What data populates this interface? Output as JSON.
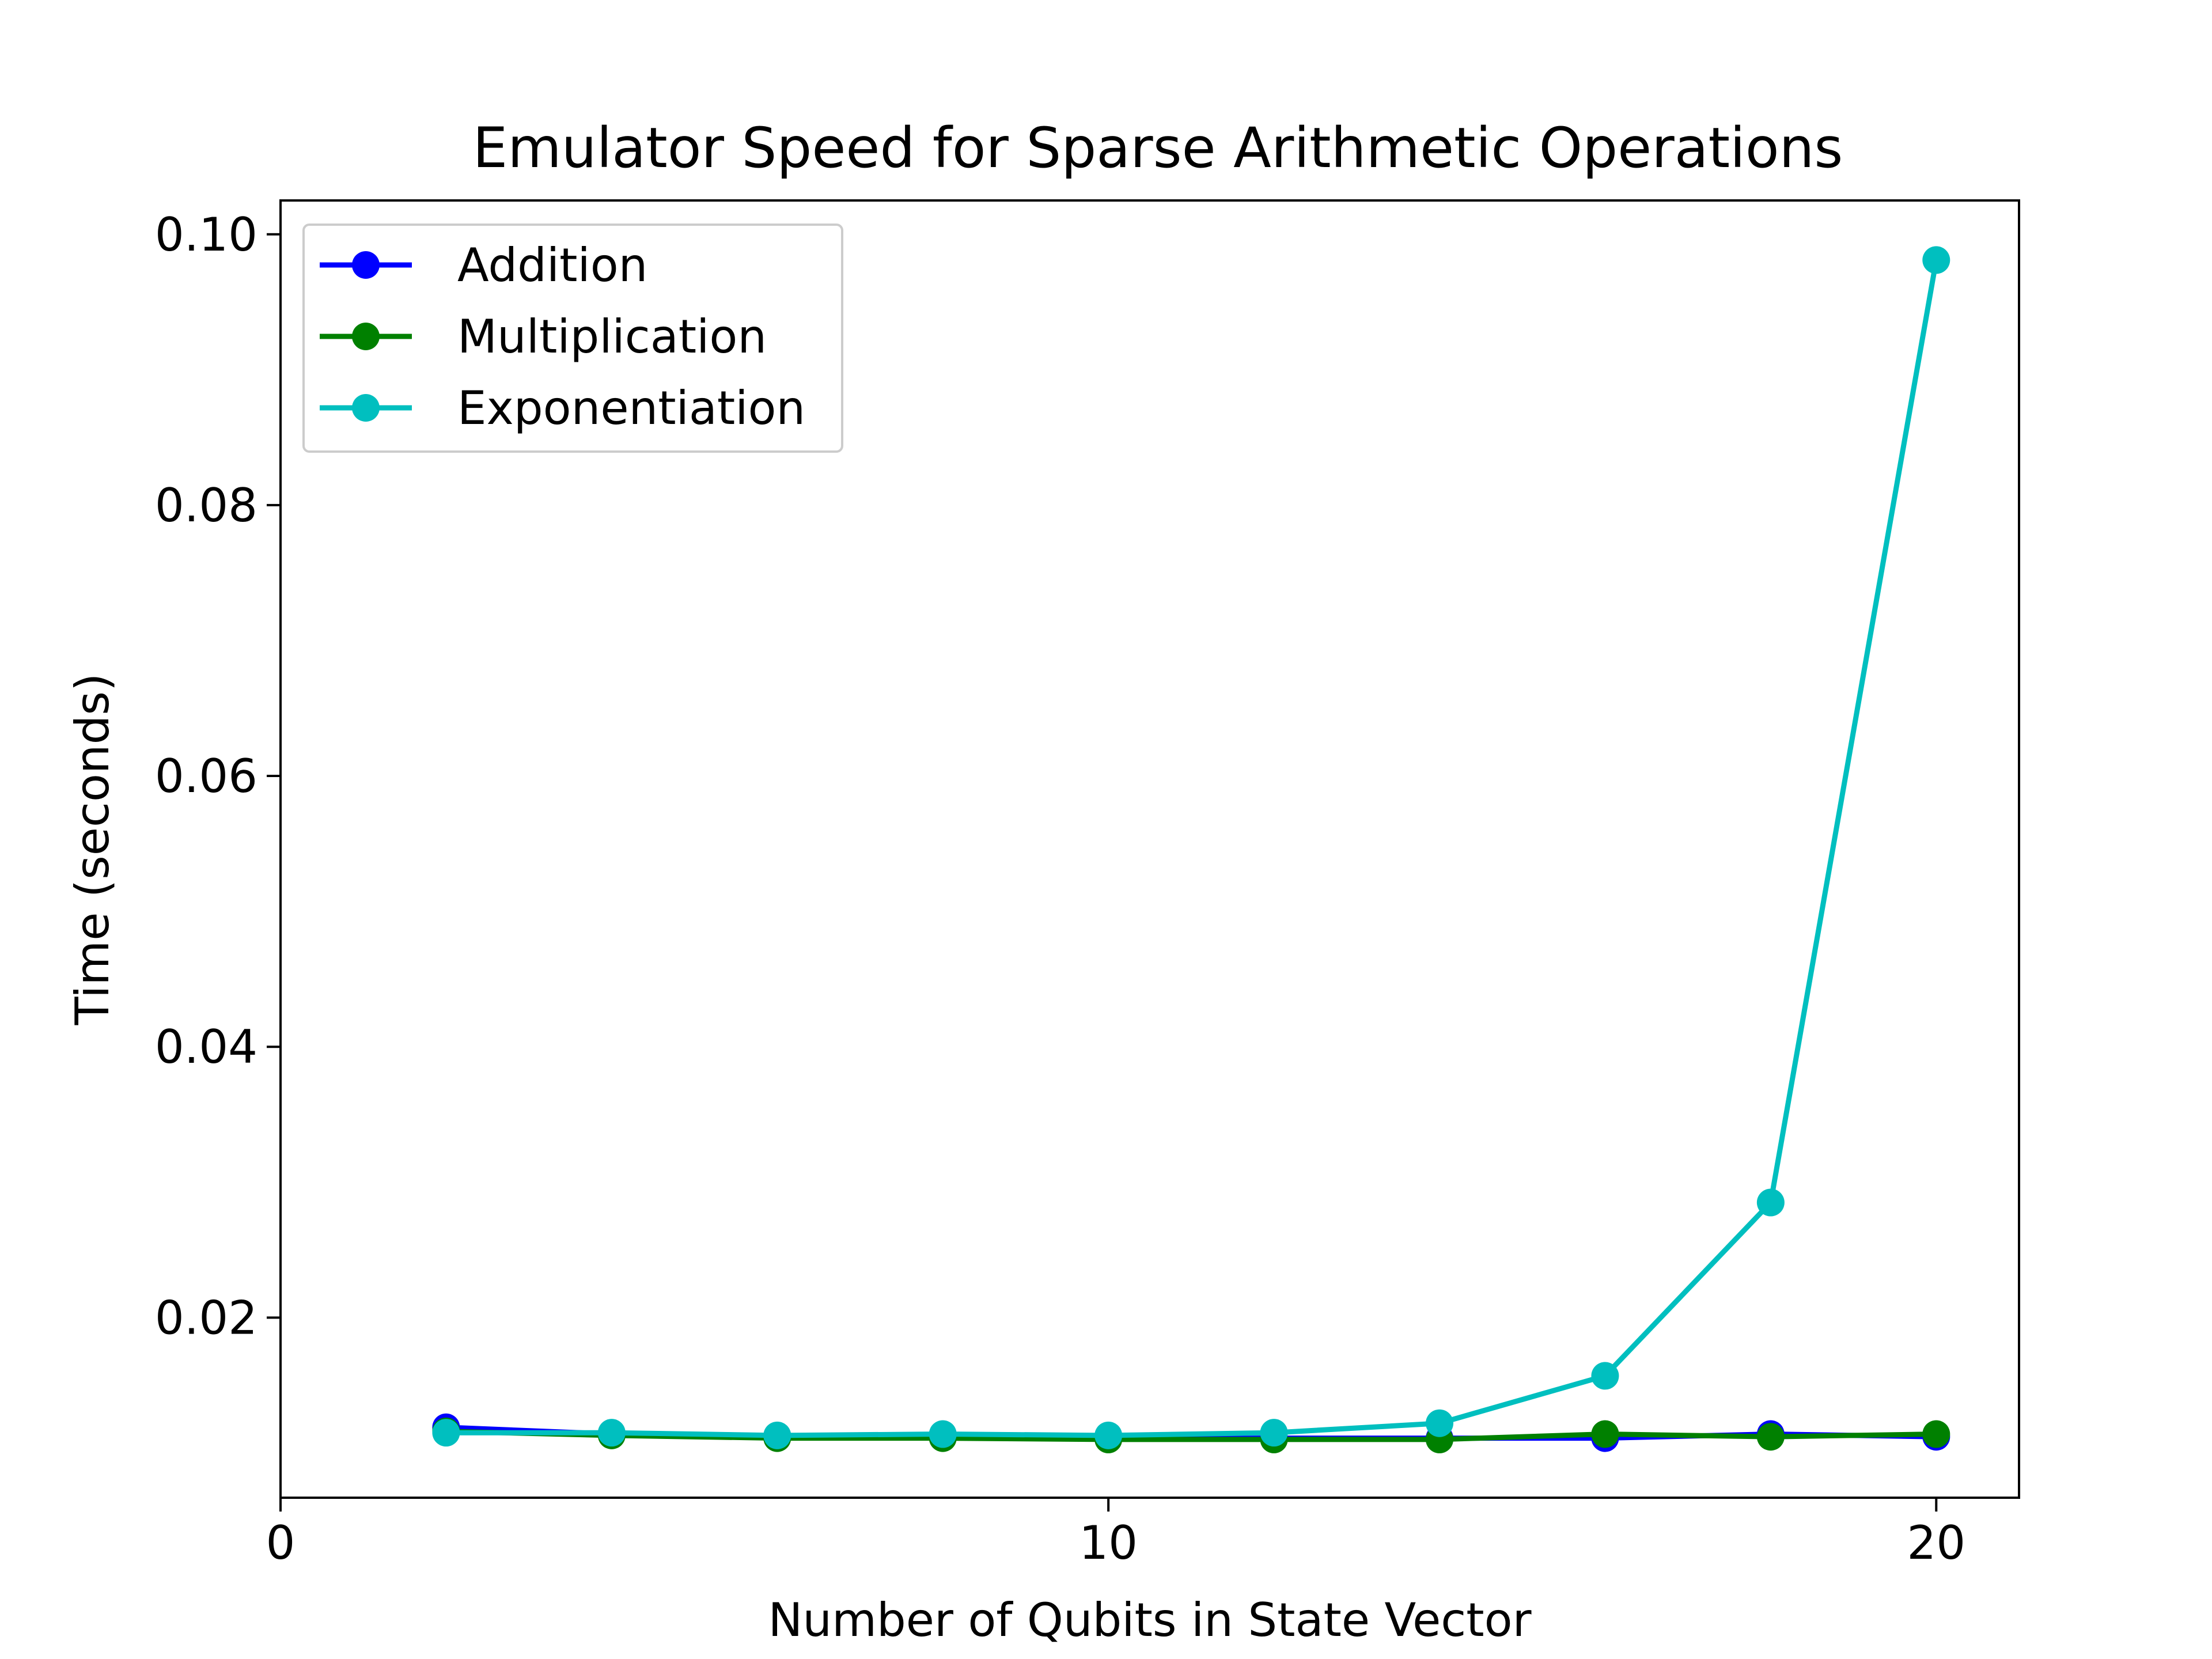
{
  "chart_data": {
    "type": "line",
    "title": "Emulator Speed for Sparse Arithmetic Operations",
    "xlabel": "Number of Qubits in State Vector",
    "ylabel": "Time (seconds)",
    "xlim": [
      0,
      21
    ],
    "ylim": [
      0.0067,
      0.1025
    ],
    "xticks": [
      0,
      10,
      20
    ],
    "xtick_labels": [
      "0",
      "10",
      "20"
    ],
    "yticks": [
      0.02,
      0.04,
      0.06,
      0.08,
      0.1
    ],
    "ytick_labels": [
      "0.02",
      "0.04",
      "0.06",
      "0.08",
      "0.10"
    ],
    "grid": false,
    "legend_position": "upper-left",
    "x": [
      2,
      4,
      6,
      8,
      10,
      12,
      14,
      16,
      18,
      20
    ],
    "series": [
      {
        "name": "Addition",
        "color": "#0000ff",
        "values": [
          0.0119,
          0.0114,
          0.0112,
          0.0112,
          0.0111,
          0.0111,
          0.0111,
          0.0111,
          0.0114,
          0.0112
        ]
      },
      {
        "name": "Multiplication",
        "color": "#008000",
        "values": [
          0.0116,
          0.0113,
          0.0111,
          0.0111,
          0.011,
          0.011,
          0.011,
          0.0114,
          0.0112,
          0.0114
        ]
      },
      {
        "name": "Exponentiation",
        "color": "#00bfbf",
        "values": [
          0.0115,
          0.0115,
          0.0113,
          0.0114,
          0.0113,
          0.0115,
          0.0122,
          0.0157,
          0.0285,
          0.0981
        ]
      }
    ]
  }
}
